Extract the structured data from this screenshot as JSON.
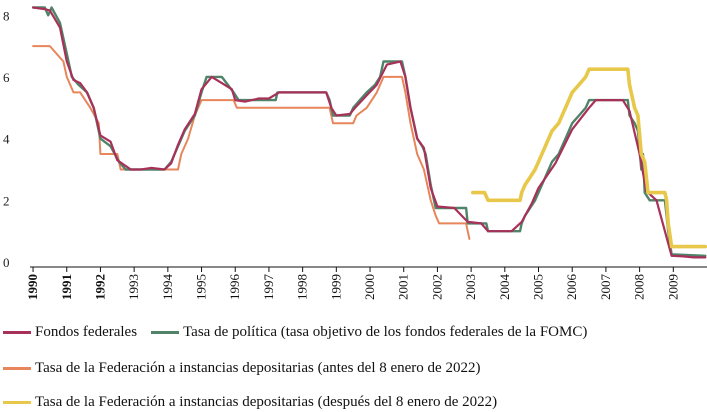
{
  "chart_data": {
    "type": "line",
    "title": "",
    "xlabel": "",
    "ylabel": "",
    "xlim": [
      1989.85,
      2010.0
    ],
    "ylim": [
      0,
      8.3
    ],
    "y_ticks": [
      0,
      2,
      4,
      6,
      8
    ],
    "x_ticks": [
      1990,
      1991,
      1992,
      1993,
      1994,
      1995,
      1996,
      1997,
      1998,
      1999,
      2000,
      2001,
      2002,
      2003,
      2004,
      2005,
      2006,
      2007,
      2008,
      2009
    ],
    "x_tick_labels": [
      "1990",
      "1991",
      "1992",
      "1993",
      "1994",
      "1995",
      "1996",
      "1997",
      "1998",
      "1999",
      "2000",
      "2001",
      "2002",
      "2003",
      "2004",
      "2005",
      "2006",
      "2007",
      "2008",
      "2009"
    ],
    "x_tick_bold": [
      true,
      true,
      true,
      false,
      false,
      false,
      false,
      false,
      false,
      false,
      false,
      false,
      false,
      false,
      false,
      false,
      false,
      false,
      false,
      false
    ],
    "series": [
      {
        "name": "Fondos federales",
        "color": "#a8315a",
        "points": [
          [
            1990.0,
            8.25
          ],
          [
            1990.35,
            8.2
          ],
          [
            1990.5,
            8.15
          ],
          [
            1990.8,
            7.6
          ],
          [
            1991.0,
            6.5
          ],
          [
            1991.2,
            5.9
          ],
          [
            1991.4,
            5.8
          ],
          [
            1991.6,
            5.5
          ],
          [
            1991.8,
            5.0
          ],
          [
            1992.0,
            4.1
          ],
          [
            1992.3,
            3.9
          ],
          [
            1992.5,
            3.3
          ],
          [
            1992.9,
            3.0
          ],
          [
            1993.2,
            3.0
          ],
          [
            1993.5,
            3.05
          ],
          [
            1993.9,
            3.0
          ],
          [
            1994.1,
            3.2
          ],
          [
            1994.3,
            3.8
          ],
          [
            1994.5,
            4.3
          ],
          [
            1994.8,
            4.8
          ],
          [
            1995.0,
            5.6
          ],
          [
            1995.3,
            6.0
          ],
          [
            1995.6,
            5.8
          ],
          [
            1995.9,
            5.6
          ],
          [
            1996.0,
            5.25
          ],
          [
            1996.3,
            5.2
          ],
          [
            1996.7,
            5.3
          ],
          [
            1997.0,
            5.3
          ],
          [
            1997.3,
            5.5
          ],
          [
            1997.6,
            5.5
          ],
          [
            1998.0,
            5.5
          ],
          [
            1998.4,
            5.5
          ],
          [
            1998.7,
            5.5
          ],
          [
            1998.85,
            5.0
          ],
          [
            1999.0,
            4.75
          ],
          [
            1999.4,
            4.8
          ],
          [
            1999.6,
            5.05
          ],
          [
            1999.9,
            5.4
          ],
          [
            2000.2,
            5.75
          ],
          [
            2000.5,
            6.4
          ],
          [
            2000.9,
            6.5
          ],
          [
            2001.05,
            6.0
          ],
          [
            2001.2,
            5.0
          ],
          [
            2001.4,
            4.0
          ],
          [
            2001.6,
            3.7
          ],
          [
            2001.8,
            2.4
          ],
          [
            2002.0,
            1.8
          ],
          [
            2002.5,
            1.75
          ],
          [
            2002.9,
            1.3
          ],
          [
            2003.3,
            1.25
          ],
          [
            2003.5,
            1.0
          ],
          [
            2003.9,
            1.0
          ],
          [
            2004.2,
            1.0
          ],
          [
            2004.5,
            1.3
          ],
          [
            2004.8,
            1.9
          ],
          [
            2005.0,
            2.4
          ],
          [
            2005.5,
            3.2
          ],
          [
            2006.0,
            4.3
          ],
          [
            2006.5,
            5.0
          ],
          [
            2006.7,
            5.25
          ],
          [
            2007.0,
            5.25
          ],
          [
            2007.5,
            5.25
          ],
          [
            2007.7,
            4.9
          ],
          [
            2008.0,
            3.5
          ],
          [
            2008.2,
            2.3
          ],
          [
            2008.5,
            2.0
          ],
          [
            2008.75,
            1.0
          ],
          [
            2008.95,
            0.2
          ],
          [
            2009.3,
            0.18
          ],
          [
            2009.6,
            0.15
          ],
          [
            2009.95,
            0.15
          ]
        ]
      },
      {
        "name": "Tasa de política (tasa objetivo de los fondos federales de la FOMC)",
        "label_parts": [
          "Tasa de política (tasa objetivo de los fondos federales de la ",
          "FOMC",
          ")"
        ],
        "color": "#4f8468",
        "points": [
          [
            1990.0,
            8.25
          ],
          [
            1990.35,
            8.25
          ],
          [
            1990.45,
            8.0
          ],
          [
            1990.55,
            8.25
          ],
          [
            1990.8,
            7.75
          ],
          [
            1991.0,
            6.75
          ],
          [
            1991.15,
            6.0
          ],
          [
            1991.35,
            5.75
          ],
          [
            1991.6,
            5.5
          ],
          [
            1991.8,
            5.0
          ],
          [
            1992.0,
            4.0
          ],
          [
            1992.3,
            3.75
          ],
          [
            1992.55,
            3.25
          ],
          [
            1992.75,
            3.0
          ],
          [
            1993.0,
            3.0
          ],
          [
            1993.9,
            3.0
          ],
          [
            1994.1,
            3.25
          ],
          [
            1994.3,
            3.75
          ],
          [
            1994.5,
            4.25
          ],
          [
            1994.8,
            4.75
          ],
          [
            1995.0,
            5.5
          ],
          [
            1995.15,
            6.0
          ],
          [
            1995.6,
            6.0
          ],
          [
            1995.95,
            5.5
          ],
          [
            1996.1,
            5.25
          ],
          [
            1997.2,
            5.25
          ],
          [
            1997.25,
            5.5
          ],
          [
            1998.7,
            5.5
          ],
          [
            1998.8,
            5.25
          ],
          [
            1998.9,
            4.75
          ],
          [
            1999.4,
            4.75
          ],
          [
            1999.5,
            5.0
          ],
          [
            1999.7,
            5.25
          ],
          [
            1999.9,
            5.5
          ],
          [
            2000.15,
            5.75
          ],
          [
            2000.3,
            6.0
          ],
          [
            2000.4,
            6.5
          ],
          [
            2000.95,
            6.5
          ],
          [
            2001.05,
            6.0
          ],
          [
            2001.2,
            5.0
          ],
          [
            2001.4,
            4.0
          ],
          [
            2001.55,
            3.75
          ],
          [
            2001.65,
            3.5
          ],
          [
            2001.8,
            2.5
          ],
          [
            2001.95,
            1.75
          ],
          [
            2002.85,
            1.75
          ],
          [
            2002.9,
            1.25
          ],
          [
            2003.45,
            1.25
          ],
          [
            2003.5,
            1.0
          ],
          [
            2004.45,
            1.0
          ],
          [
            2004.5,
            1.25
          ],
          [
            2004.6,
            1.5
          ],
          [
            2004.75,
            1.75
          ],
          [
            2004.9,
            2.0
          ],
          [
            2005.0,
            2.25
          ],
          [
            2005.2,
            2.75
          ],
          [
            2005.4,
            3.25
          ],
          [
            2005.6,
            3.5
          ],
          [
            2005.8,
            4.0
          ],
          [
            2006.0,
            4.5
          ],
          [
            2006.2,
            4.75
          ],
          [
            2006.4,
            5.0
          ],
          [
            2006.5,
            5.25
          ],
          [
            2007.65,
            5.25
          ],
          [
            2007.7,
            4.75
          ],
          [
            2007.85,
            4.5
          ],
          [
            2007.95,
            4.25
          ],
          [
            2008.05,
            3.0
          ],
          [
            2008.1,
            3.5
          ],
          [
            2008.15,
            2.25
          ],
          [
            2008.3,
            2.0
          ],
          [
            2008.75,
            2.0
          ],
          [
            2008.8,
            1.5
          ],
          [
            2008.85,
            1.0
          ],
          [
            2008.95,
            0.25
          ],
          [
            2009.95,
            0.2
          ]
        ]
      },
      {
        "name": "Tasa de la Federación a instancias depositarias (antes del 8 enero de 2022)",
        "color": "#e8855a",
        "points": [
          [
            1990.0,
            7.0
          ],
          [
            1990.5,
            7.0
          ],
          [
            1990.9,
            6.5
          ],
          [
            1991.0,
            6.0
          ],
          [
            1991.2,
            5.5
          ],
          [
            1991.4,
            5.5
          ],
          [
            1991.7,
            5.0
          ],
          [
            1991.95,
            4.5
          ],
          [
            1992.0,
            3.5
          ],
          [
            1992.5,
            3.5
          ],
          [
            1992.6,
            3.0
          ],
          [
            1994.3,
            3.0
          ],
          [
            1994.4,
            3.5
          ],
          [
            1994.6,
            4.0
          ],
          [
            1994.8,
            4.75
          ],
          [
            1995.0,
            5.25
          ],
          [
            1995.95,
            5.25
          ],
          [
            1996.05,
            5.0
          ],
          [
            1998.8,
            5.0
          ],
          [
            1998.9,
            4.5
          ],
          [
            1999.5,
            4.5
          ],
          [
            1999.6,
            4.75
          ],
          [
            1999.9,
            5.0
          ],
          [
            2000.2,
            5.5
          ],
          [
            2000.4,
            6.0
          ],
          [
            2000.95,
            6.0
          ],
          [
            2001.05,
            5.5
          ],
          [
            2001.2,
            4.5
          ],
          [
            2001.4,
            3.5
          ],
          [
            2001.6,
            3.0
          ],
          [
            2001.8,
            2.0
          ],
          [
            2001.95,
            1.5
          ],
          [
            2002.05,
            1.25
          ],
          [
            2002.85,
            1.25
          ],
          [
            2002.95,
            0.75
          ]
        ]
      },
      {
        "name": "Tasa de la Federación a instancias depositarias (después del 8 enero de 2022)",
        "color": "#e8c84a",
        "points": [
          [
            2003.05,
            2.25
          ],
          [
            2003.4,
            2.25
          ],
          [
            2003.5,
            2.0
          ],
          [
            2004.45,
            2.0
          ],
          [
            2004.5,
            2.25
          ],
          [
            2004.6,
            2.5
          ],
          [
            2004.75,
            2.75
          ],
          [
            2004.9,
            3.0
          ],
          [
            2005.0,
            3.25
          ],
          [
            2005.2,
            3.75
          ],
          [
            2005.4,
            4.25
          ],
          [
            2005.6,
            4.5
          ],
          [
            2005.8,
            5.0
          ],
          [
            2006.0,
            5.5
          ],
          [
            2006.2,
            5.75
          ],
          [
            2006.4,
            6.0
          ],
          [
            2006.5,
            6.25
          ],
          [
            2007.65,
            6.25
          ],
          [
            2007.7,
            5.75
          ],
          [
            2007.85,
            5.0
          ],
          [
            2007.95,
            4.75
          ],
          [
            2008.05,
            3.5
          ],
          [
            2008.15,
            3.25
          ],
          [
            2008.25,
            2.25
          ],
          [
            2008.75,
            2.25
          ],
          [
            2008.8,
            2.0
          ],
          [
            2008.85,
            1.25
          ],
          [
            2008.95,
            0.5
          ],
          [
            2009.95,
            0.5
          ]
        ]
      }
    ]
  }
}
